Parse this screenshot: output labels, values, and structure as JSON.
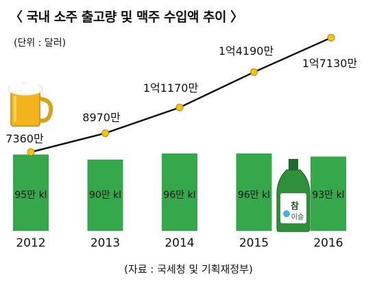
{
  "header": {
    "title": "〈 국내 소주 출고량 및 맥주 수입액 추이 〉",
    "unit": "(단위 : 달러)",
    "source": "(자료 : 국세청 및 기획재정부)"
  },
  "chart_data": {
    "type": "bar",
    "categories": [
      "2012",
      "2013",
      "2014",
      "2015",
      "2016"
    ],
    "series": [
      {
        "values": [
          95,
          90,
          96,
          96,
          93
        ],
        "value_labels": [
          "95만 kl",
          "90만 kl",
          "96만 kl",
          "96만 kl",
          "93만 kl"
        ],
        "color": "#34a84a"
      },
      {
        "values": [
          73600000,
          89700000,
          111700000,
          141900000,
          171300000
        ],
        "value_labels": [
          "7360만",
          "8970만",
          "1억1170만",
          "1억4190만",
          "1억7130만"
        ],
        "color": "#111111",
        "marker_color": "#f2c318"
      }
    ],
    "icons": [
      "beer-mug-icon",
      "soju-bottle-icon"
    ],
    "colors": {
      "bar": "#34a84a",
      "marker": "#f2c318",
      "line": "#111111"
    }
  }
}
